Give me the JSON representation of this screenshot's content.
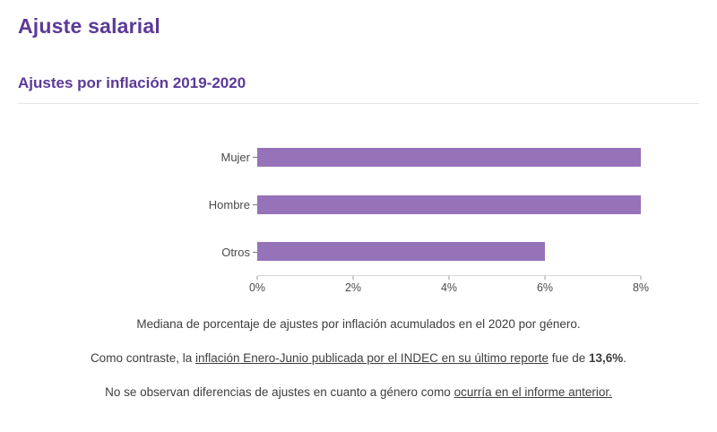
{
  "colors": {
    "accent": "#5b3a97",
    "bar": "#9673b9",
    "axis": "#d6d6d6",
    "text": "#3e3e3e"
  },
  "header": {
    "title": "Ajuste salarial",
    "subtitle": "Ajustes por inflación 2019-2020"
  },
  "chart_data": {
    "type": "bar",
    "orientation": "horizontal",
    "title": "",
    "xlabel": "",
    "ylabel": "",
    "categories": [
      "Mujer",
      "Hombre",
      "Otros"
    ],
    "values": [
      8,
      8,
      6
    ],
    "value_unit": "%",
    "xlim": [
      0,
      8
    ],
    "x_ticks": [
      "0%",
      "2%",
      "4%",
      "6%",
      "8%"
    ],
    "grid": false,
    "legend": "none"
  },
  "captions": {
    "line1": [
      {
        "text": "Mediana de porcentaje de ajustes por inflación acumulados en el 2020 por género.",
        "style": "plain"
      }
    ],
    "line2": [
      {
        "text": "Como contraste, la ",
        "style": "plain"
      },
      {
        "text": "inflación Enero-Junio publicada por el INDEC en su último reporte",
        "style": "link"
      },
      {
        "text": " fue de ",
        "style": "plain"
      },
      {
        "text": "13,6%",
        "style": "bold"
      },
      {
        "text": ".",
        "style": "plain"
      }
    ],
    "line3": [
      {
        "text": "No se observan diferencias de ajustes en cuanto a género como ",
        "style": "plain"
      },
      {
        "text": "ocurría en el informe anterior.",
        "style": "link"
      }
    ]
  }
}
